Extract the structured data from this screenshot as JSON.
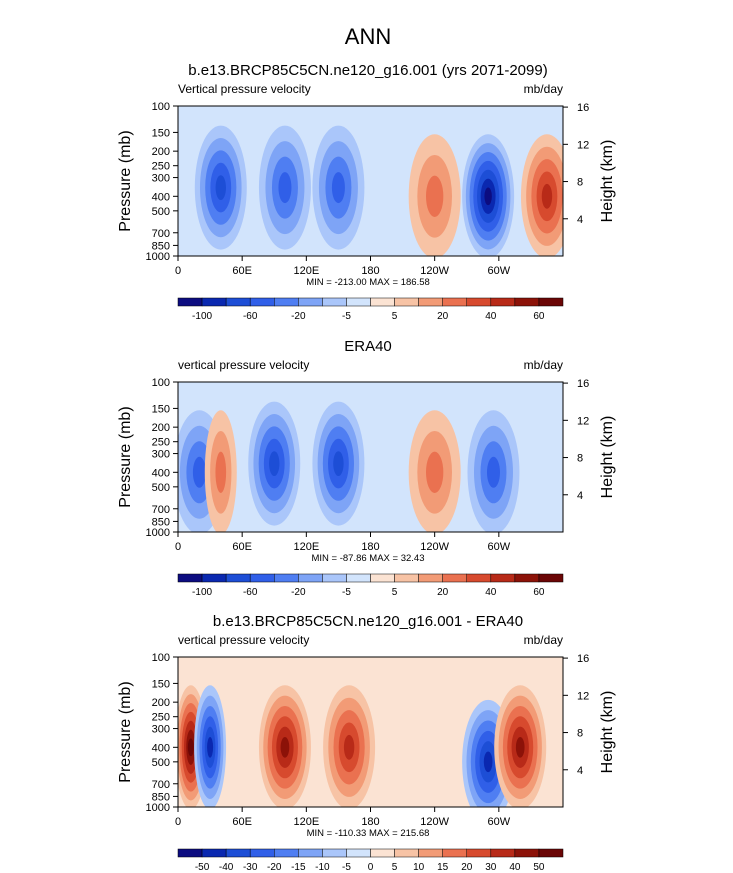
{
  "figure": {
    "title": "ANN",
    "unit_label": "mb/day",
    "left_axis_label": "Pressure (mb)",
    "right_axis_label": "Height (km)"
  },
  "chart_data": [
    {
      "type": "heatmap",
      "title": "b.e13.BRCP85C5CN.ne120_g16.001 (yrs 2071-2099)",
      "subtitle_left": "Vertical pressure velocity",
      "subtitle_right": "mb/day",
      "ylabel": "Pressure (mb)",
      "y2label": "Height (km)",
      "xlim": [
        0,
        360
      ],
      "ylim": [
        1000,
        100
      ],
      "x_ticks": [
        "0",
        "60E",
        "120E",
        "180",
        "120W",
        "60W"
      ],
      "y_ticks": [
        "100",
        "150",
        "200",
        "250",
        "300",
        "400",
        "500",
        "700",
        "850",
        "1000"
      ],
      "y2_ticks": [
        "4",
        "8",
        "12",
        "16"
      ],
      "stats": "MIN = -213.00  MAX = 186.58",
      "colorbar_labels": [
        "-100",
        "-60",
        "-20",
        "-5",
        "5",
        "20",
        "40",
        "60"
      ],
      "colorbar_levels": [
        -100,
        -80,
        -60,
        -40,
        -20,
        -10,
        -5,
        0,
        5,
        10,
        20,
        30,
        40,
        50,
        60
      ],
      "features": [
        {
          "lon": 40,
          "p": 350,
          "value": -60
        },
        {
          "lon": 100,
          "p": 350,
          "value": -45
        },
        {
          "lon": 150,
          "p": 350,
          "value": -45
        },
        {
          "lon": 290,
          "p": 400,
          "value": -100
        },
        {
          "lon": 240,
          "p": 400,
          "value": 25
        },
        {
          "lon": 345,
          "p": 400,
          "value": 40
        }
      ]
    },
    {
      "type": "heatmap",
      "title": "ERA40",
      "subtitle_left": "vertical pressure velocity",
      "subtitle_right": "mb/day",
      "ylabel": "Pressure (mb)",
      "y2label": "Height (km)",
      "xlim": [
        0,
        360
      ],
      "ylim": [
        1000,
        100
      ],
      "x_ticks": [
        "0",
        "60E",
        "120E",
        "180",
        "120W",
        "60W"
      ],
      "y_ticks": [
        "100",
        "150",
        "200",
        "250",
        "300",
        "400",
        "500",
        "700",
        "850",
        "1000"
      ],
      "y2_ticks": [
        "4",
        "8",
        "12",
        "16"
      ],
      "stats": "MIN = -87.86  MAX = 32.43",
      "colorbar_labels": [
        "-100",
        "-60",
        "-20",
        "-5",
        "5",
        "20",
        "40",
        "60"
      ],
      "colorbar_levels": [
        -100,
        -80,
        -60,
        -40,
        -20,
        -10,
        -5,
        0,
        5,
        10,
        20,
        30,
        40,
        50,
        60
      ],
      "features": [
        {
          "lon": 20,
          "p": 400,
          "value": -55
        },
        {
          "lon": 40,
          "p": 400,
          "value": 25
        },
        {
          "lon": 90,
          "p": 350,
          "value": -60
        },
        {
          "lon": 150,
          "p": 350,
          "value": -60
        },
        {
          "lon": 240,
          "p": 400,
          "value": 25
        },
        {
          "lon": 295,
          "p": 400,
          "value": -55
        }
      ]
    },
    {
      "type": "heatmap",
      "title": "b.e13.BRCP85C5CN.ne120_g16.001 - ERA40",
      "subtitle_left": "vertical pressure velocity",
      "subtitle_right": "mb/day",
      "ylabel": "Pressure (mb)",
      "y2label": "Height (km)",
      "xlim": [
        0,
        360
      ],
      "ylim": [
        1000,
        100
      ],
      "x_ticks": [
        "0",
        "60E",
        "120E",
        "180",
        "120W",
        "60W"
      ],
      "y_ticks": [
        "100",
        "150",
        "200",
        "250",
        "300",
        "400",
        "500",
        "700",
        "850",
        "1000"
      ],
      "y2_ticks": [
        "4",
        "8",
        "12",
        "16"
      ],
      "stats": "MIN = -110.33  MAX = 215.68",
      "colorbar_labels": [
        "-50",
        "-40",
        "-30",
        "-20",
        "-15",
        "-10",
        "-5",
        "0",
        "5",
        "10",
        "15",
        "20",
        "30",
        "40",
        "50"
      ],
      "colorbar_levels": [
        -50,
        -40,
        -30,
        -20,
        -15,
        -10,
        -5,
        0,
        5,
        10,
        15,
        20,
        30,
        40,
        50
      ],
      "features": [
        {
          "lon": 12,
          "p": 400,
          "value": 50
        },
        {
          "lon": 30,
          "p": 400,
          "value": -40
        },
        {
          "lon": 100,
          "p": 400,
          "value": 40
        },
        {
          "lon": 160,
          "p": 400,
          "value": 30
        },
        {
          "lon": 290,
          "p": 500,
          "value": -40
        },
        {
          "lon": 320,
          "p": 400,
          "value": 40
        }
      ]
    }
  ],
  "colorbar_colors": [
    "#0c0c80",
    "#0a28b0",
    "#1d4ed6",
    "#305fe8",
    "#4f7ef2",
    "#7ea4f6",
    "#aac6fa",
    "#d2e4fc",
    "#fbe3d3",
    "#f7c3a5",
    "#f29b76",
    "#ea7150",
    "#d74a2e",
    "#b82a18",
    "#8c1208",
    "#6b0606"
  ]
}
